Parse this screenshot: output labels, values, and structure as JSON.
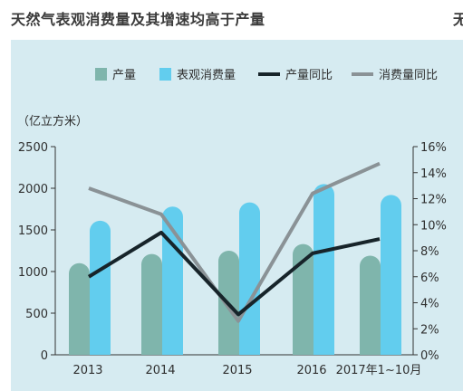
{
  "title": "天然气表观消费量及其增速均高于产量",
  "cut_char": "无",
  "legend": [
    {
      "name": "产量",
      "color": "#7fb5ac",
      "kind": "bar"
    },
    {
      "name": "表观消费量",
      "color": "#62cdee",
      "kind": "bar"
    },
    {
      "name": "产量同比",
      "color": "#17242a",
      "kind": "line"
    },
    {
      "name": "消费量同比",
      "color": "#8a9296",
      "kind": "line"
    }
  ],
  "chart_data": {
    "type": "bar",
    "unit_label": "（亿立方米）",
    "categories": [
      "2013",
      "2014",
      "2015",
      "2016",
      "2017年1~10月"
    ],
    "y_left": {
      "ticks": [
        "0",
        "500",
        "1000",
        "1500",
        "2000",
        "2500"
      ],
      "ylim": [
        0,
        2500
      ]
    },
    "y_right": {
      "ticks": [
        "0%",
        "2%",
        "4%",
        "6%",
        "8%",
        "10%",
        "12%",
        "14%",
        "16%"
      ],
      "ylim": [
        0,
        16
      ]
    },
    "series": [
      {
        "name": "产量",
        "kind": "bar",
        "axis": "left",
        "color": "#7fb5ac",
        "values": [
          1100,
          1210,
          1250,
          1330,
          1190
        ]
      },
      {
        "name": "表观消费量",
        "kind": "bar",
        "axis": "left",
        "color": "#62cdee",
        "values": [
          1610,
          1780,
          1830,
          2050,
          1920
        ]
      },
      {
        "name": "产量同比",
        "kind": "line",
        "axis": "right",
        "color": "#17242a",
        "values": [
          6.0,
          9.4,
          3.1,
          7.8,
          8.9
        ]
      },
      {
        "name": "消费量同比",
        "kind": "line",
        "axis": "right",
        "color": "#8a9296",
        "values": [
          12.8,
          10.8,
          2.6,
          12.4,
          14.7
        ]
      }
    ]
  }
}
